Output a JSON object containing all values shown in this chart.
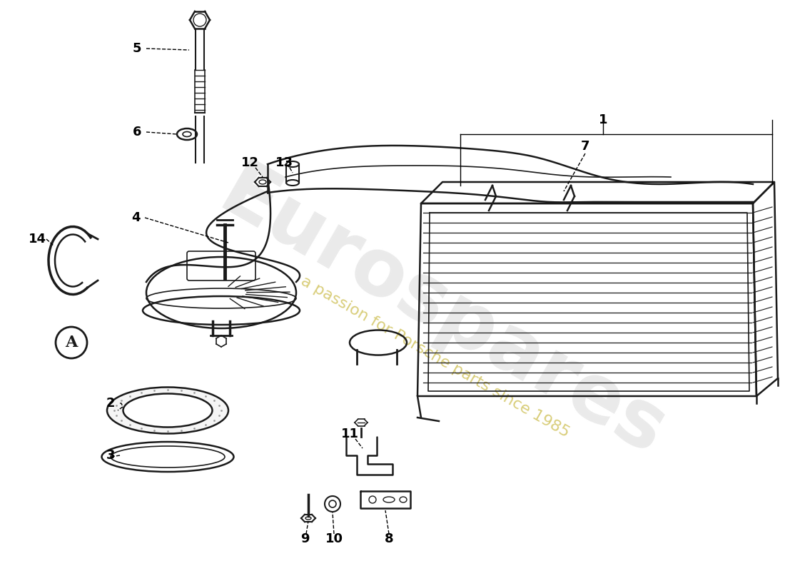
{
  "background_color": "#ffffff",
  "line_color": "#1a1a1a",
  "watermark1": "Eurospares",
  "watermark2": "a passion for Porsche parts since 1985",
  "wm1_color": "#cccccc",
  "wm2_color": "#c8b840",
  "fig_width": 11.0,
  "fig_height": 8.0,
  "dpi": 100
}
